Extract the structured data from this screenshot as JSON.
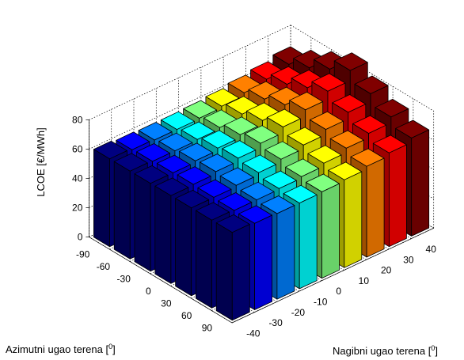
{
  "chart_data": {
    "type": "bar3d",
    "zlabel": "LCOE [€/MWh]",
    "xlabel_prefix": "Azimutni ugao terena [",
    "xlabel_sup": "0",
    "xlabel_suffix": "]",
    "ylabel_prefix": "Nagibni ugao terena [",
    "ylabel_sup": "0",
    "ylabel_suffix": "]",
    "zlim": [
      0,
      80
    ],
    "z_ticks": [
      "0",
      "20",
      "40",
      "60",
      "80"
    ],
    "azimuth_ticks": [
      "-90",
      "-60",
      "-30",
      "0",
      "30",
      "60",
      "90"
    ],
    "slope_ticks": [
      "-40",
      "-30",
      "-20",
      "-10",
      "0",
      "10",
      "20",
      "30",
      "40"
    ],
    "azimuth": [
      -90,
      -60,
      -30,
      0,
      30,
      60,
      90
    ],
    "slope": [
      -40,
      -30,
      -20,
      -10,
      0,
      10,
      20,
      30,
      40
    ],
    "values": [
      [
        60.0,
        60.0,
        60.0,
        60.0,
        60.0,
        60.0,
        60.0
      ],
      [
        59.0,
        59.5,
        60.0,
        60.5,
        60.0,
        59.5,
        59.0
      ],
      [
        58.5,
        59.5,
        61.0,
        62.0,
        61.0,
        59.5,
        58.5
      ],
      [
        58.5,
        60.0,
        62.5,
        64.0,
        62.5,
        60.0,
        58.5
      ],
      [
        59.0,
        61.0,
        64.5,
        67.0,
        64.5,
        61.0,
        59.0
      ],
      [
        60.0,
        63.0,
        67.0,
        71.0,
        67.0,
        63.0,
        60.0
      ],
      [
        62.0,
        66.0,
        70.5,
        75.5,
        70.5,
        66.0,
        62.0
      ],
      [
        64.0,
        69.0,
        75.0,
        81.0,
        75.0,
        69.0,
        64.0
      ],
      [
        67.0,
        73.0,
        80.5,
        88.0,
        80.5,
        73.0,
        67.0
      ]
    ],
    "colormap": "jet",
    "grid": true
  }
}
